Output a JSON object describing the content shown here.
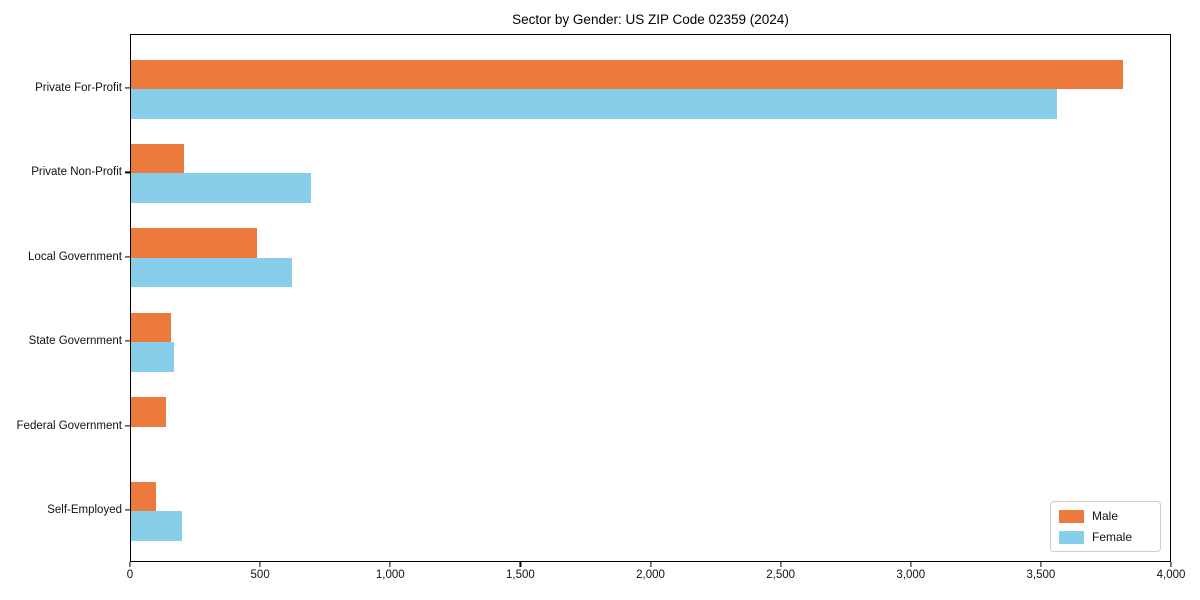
{
  "figure": {
    "background": "#ffffff",
    "title": "Sector by Gender: US ZIP Code 02359 (2024)"
  },
  "chart_data": {
    "type": "bar",
    "orientation": "horizontal",
    "title": "Sector by Gender: US ZIP Code 02359 (2024)",
    "categories": [
      "Private For-Profit",
      "Private Non-Profit",
      "Local Government",
      "State Government",
      "Federal Government",
      "Self-Employed"
    ],
    "series": [
      {
        "name": "Male",
        "color": "#EC7A3C",
        "values": [
          3810,
          205,
          485,
          155,
          135,
          95
        ]
      },
      {
        "name": "Female",
        "color": "#87CEEB",
        "values": [
          3560,
          690,
          620,
          165,
          0,
          195
        ]
      }
    ],
    "xlabel": "",
    "ylabel": "",
    "xlim": [
      0,
      4000
    ],
    "x_ticks": [
      0,
      500,
      1000,
      1500,
      2000,
      2500,
      3000,
      3500,
      4000
    ],
    "x_tick_labels": [
      "0",
      "500",
      "1,000",
      "1,500",
      "2,000",
      "2,500",
      "3,000",
      "3,500",
      "4,000"
    ],
    "grid": false,
    "legend": {
      "position": "lower right",
      "entries": [
        "Male",
        "Female"
      ]
    }
  }
}
